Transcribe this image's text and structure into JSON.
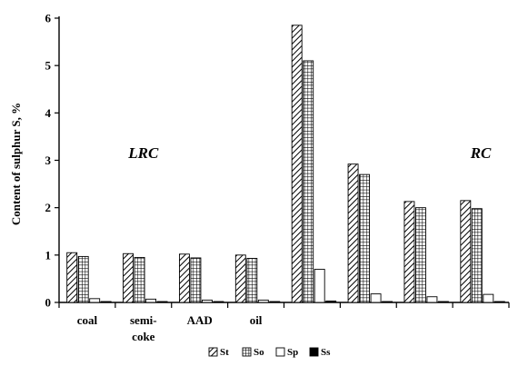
{
  "chart_data": {
    "type": "bar",
    "title": "",
    "xlabel": "",
    "ylabel": "Content of sulphur S, %",
    "ylim": [
      0,
      6
    ],
    "yticks": [
      0,
      1,
      2,
      3,
      4,
      5,
      6
    ],
    "grid": false,
    "legend_position": "bottom",
    "categories": [
      [
        "coal"
      ],
      [
        "semi-",
        "coke"
      ],
      [
        "AAD"
      ],
      [
        "oil"
      ],
      [],
      [],
      [],
      []
    ],
    "series": [
      {
        "name": "St",
        "pattern": "diagonal-hatch",
        "values": [
          1.05,
          1.03,
          1.02,
          1.0,
          5.85,
          2.92,
          2.13,
          2.15
        ]
      },
      {
        "name": "So",
        "pattern": "grid-hatch",
        "values": [
          0.97,
          0.95,
          0.94,
          0.93,
          5.1,
          2.7,
          2.0,
          1.98
        ]
      },
      {
        "name": "Sp",
        "pattern": "empty",
        "values": [
          0.08,
          0.07,
          0.05,
          0.05,
          0.7,
          0.18,
          0.12,
          0.17
        ]
      },
      {
        "name": "Ss",
        "pattern": "solid",
        "values": [
          0.01,
          0.01,
          0.01,
          0.01,
          0.03,
          0.01,
          0.01,
          0.01
        ]
      }
    ],
    "annotations": [
      {
        "text": "LRC",
        "near_category": 1
      },
      {
        "text": "RC",
        "near_category": 7
      }
    ]
  }
}
